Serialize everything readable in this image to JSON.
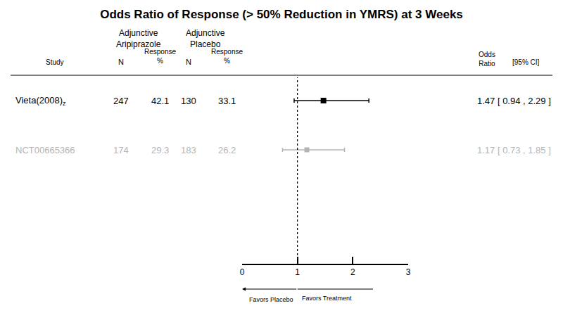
{
  "chart_data": {
    "type": "forest",
    "title": "Odds Ratio of Response (> 50% Reduction in YMRS) at 3 Weeks",
    "columns": {
      "study": "Study",
      "treatment": {
        "group": [
          "Adjunctive",
          "Aripiprazole"
        ],
        "n": "N",
        "response": [
          "Response",
          "%"
        ]
      },
      "control": {
        "group": [
          "Adjunctive",
          "Placebo"
        ],
        "n": "N",
        "response": [
          "Response",
          "%"
        ]
      },
      "odds_ratio": [
        "Odds",
        "Ratio"
      ],
      "ci": "[95% CI]"
    },
    "rows": [
      {
        "study": "Vieta(2008)",
        "study_sub": "z",
        "treatment_n": 247,
        "treatment_response": 42.1,
        "control_n": 130,
        "control_response": 33.1,
        "odds_ratio": 1.47,
        "ci_low": 0.94,
        "ci_high": 2.29,
        "or_label": "1.47 [ 0.94 , 2.29 ]",
        "color": "#000000"
      },
      {
        "study": "NCT00665366",
        "treatment_n": 174,
        "treatment_response": 29.3,
        "control_n": 183,
        "control_response": 26.2,
        "odds_ratio": 1.17,
        "ci_low": 0.73,
        "ci_high": 1.85,
        "or_label": "1.17 [ 0.73 , 1.85 ]",
        "color": "#b4b4b4"
      }
    ],
    "xlim": [
      0,
      3
    ],
    "xticks": [
      0,
      1,
      2,
      3
    ],
    "reference_line": 1,
    "direction_labels": {
      "left": "Favors Placebo",
      "right": "Favors Treatment"
    },
    "grid": false
  }
}
